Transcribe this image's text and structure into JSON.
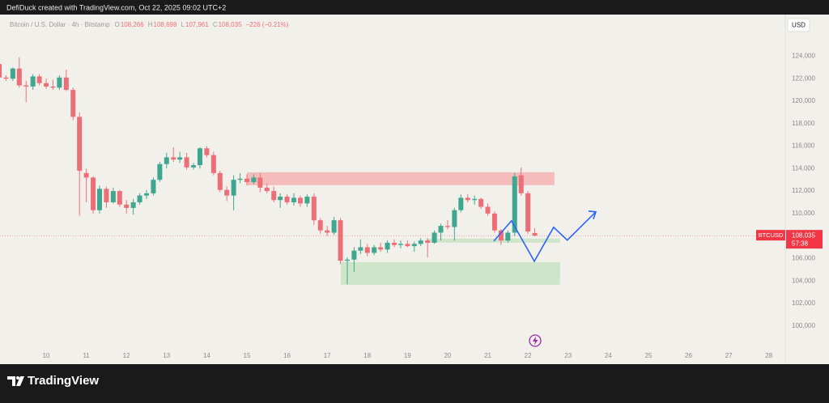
{
  "header": {
    "credit": "DefiDuck created with TradingView.com, Oct 22, 2025 09:02 UTC+2"
  },
  "chart_data": {
    "type": "candlestick",
    "symbol_title": "Bitcoin / U.S. Dollar · 4h · Bitstamp",
    "ohlc_legend": [
      {
        "label": "O",
        "value": "108,266"
      },
      {
        "label": "H",
        "value": "108,698"
      },
      {
        "label": "L",
        "value": "107,961"
      },
      {
        "label": "C",
        "value": "108,035"
      }
    ],
    "change": "−226 (−0.21%)",
    "currency": "USD",
    "up_color": "#3fa690",
    "down_color": "#ec6f78",
    "x": [
      8.83,
      9,
      9.17,
      9.33,
      9.5,
      9.67,
      9.83,
      10,
      10.17,
      10.33,
      10.5,
      10.67,
      10.83,
      11,
      11.17,
      11.33,
      11.5,
      11.67,
      11.83,
      12,
      12.17,
      12.33,
      12.5,
      12.67,
      12.83,
      13,
      13.17,
      13.33,
      13.5,
      13.67,
      13.83,
      14,
      14.17,
      14.33,
      14.5,
      14.67,
      14.83,
      15,
      15.17,
      15.33,
      15.5,
      15.67,
      15.83,
      16,
      16.17,
      16.33,
      16.5,
      16.67,
      16.83,
      17,
      17.17,
      17.33,
      17.5,
      17.67,
      17.83,
      18,
      18.17,
      18.33,
      18.5,
      18.67,
      18.83,
      19,
      19.17,
      19.33,
      19.5,
      19.67,
      19.83,
      20,
      20.17,
      20.33,
      20.5,
      20.67,
      20.83,
      21,
      21.17,
      21.33,
      21.5,
      21.67,
      21.83,
      22,
      22.17
    ],
    "open": [
      123300,
      122100,
      122000,
      122900,
      121400,
      121300,
      122200,
      121600,
      121300,
      121200,
      122100,
      121000,
      118600,
      113600,
      113200,
      110300,
      112200,
      111000,
      112000,
      110800,
      110500,
      111000,
      111600,
      111800,
      113000,
      114400,
      115000,
      114800,
      115000,
      114100,
      114300,
      115800,
      115200,
      113600,
      112100,
      111600,
      113000,
      113100,
      112800,
      113200,
      112300,
      112000,
      111200,
      111500,
      111000,
      111400,
      110900,
      111500,
      109400,
      108500,
      108300,
      109400,
      105800,
      105900,
      106700,
      107000,
      106500,
      107000,
      106800,
      107400,
      107200,
      107300,
      107100,
      107300,
      107600,
      107400,
      108300,
      108900,
      108800,
      110300,
      111400,
      111200,
      111300,
      110600,
      110000,
      108500,
      107600,
      108300,
      113400,
      111800,
      108266
    ],
    "high": [
      123500,
      122300,
      123000,
      123900,
      121800,
      122400,
      122400,
      122000,
      121900,
      122300,
      122800,
      121200,
      119000,
      114000,
      113300,
      112500,
      112400,
      112300,
      112100,
      111200,
      111300,
      111800,
      112100,
      113200,
      114600,
      115400,
      115900,
      115500,
      115400,
      114500,
      115900,
      116000,
      115500,
      113800,
      112400,
      113400,
      113600,
      113500,
      113500,
      113600,
      112700,
      112400,
      111800,
      111700,
      111800,
      111600,
      111700,
      111800,
      109600,
      108900,
      109700,
      109600,
      106100,
      107000,
      107700,
      107300,
      107200,
      107400,
      107600,
      107700,
      107600,
      107600,
      107500,
      107800,
      107800,
      108500,
      109100,
      109400,
      110500,
      111700,
      111700,
      111600,
      111400,
      110900,
      110200,
      108600,
      108500,
      113600,
      114100,
      112000,
      108698
    ],
    "low": [
      121900,
      121800,
      121800,
      121200,
      119900,
      121000,
      121400,
      121100,
      121000,
      121000,
      120900,
      118300,
      109800,
      111000,
      110000,
      110000,
      110500,
      110900,
      110600,
      110000,
      109900,
      110800,
      111300,
      111600,
      112800,
      114000,
      114600,
      114500,
      113900,
      113900,
      114000,
      115000,
      113400,
      111900,
      111100,
      110300,
      112700,
      112500,
      112600,
      111900,
      111800,
      111000,
      110500,
      110800,
      110700,
      110600,
      110600,
      109000,
      108200,
      108000,
      108100,
      105500,
      103700,
      104800,
      106400,
      106200,
      106300,
      106600,
      106500,
      107000,
      106900,
      107000,
      106600,
      107100,
      106100,
      107300,
      107600,
      108600,
      107600,
      110100,
      111000,
      110800,
      110400,
      109800,
      108300,
      107200,
      107400,
      108000,
      111600,
      108200,
      107961
    ],
    "close": [
      122100,
      122000,
      122900,
      121400,
      121300,
      122200,
      121600,
      121300,
      121200,
      122100,
      121000,
      118600,
      113800,
      113200,
      110300,
      112200,
      111000,
      112000,
      110800,
      110500,
      111000,
      111600,
      111800,
      113000,
      114400,
      115000,
      114800,
      115000,
      114100,
      114300,
      115800,
      115200,
      113600,
      112100,
      111600,
      113000,
      113100,
      112800,
      113200,
      112300,
      112000,
      111200,
      111500,
      111000,
      111400,
      110900,
      111500,
      109400,
      108500,
      108300,
      109400,
      105800,
      105900,
      106700,
      107000,
      106500,
      107000,
      106800,
      107400,
      107200,
      107300,
      107100,
      107300,
      107600,
      107400,
      108300,
      108900,
      108800,
      110300,
      111400,
      111200,
      111300,
      110600,
      110000,
      108500,
      107600,
      108300,
      113300,
      111800,
      108400,
      108035
    ],
    "xlim": [
      8.85,
      28.41
    ],
    "xticks": [
      10,
      11,
      12,
      13,
      14,
      15,
      16,
      17,
      18,
      19,
      20,
      21,
      22,
      23,
      24,
      25,
      26,
      27,
      28
    ],
    "ylim": [
      96600,
      127700
    ],
    "yticks": [
      {
        "value": 100000,
        "label": "100,000"
      },
      {
        "value": 102000,
        "label": "102,000"
      },
      {
        "value": 104000,
        "label": "104,000"
      },
      {
        "value": 106000,
        "label": "106,000"
      },
      {
        "value": 108000,
        "label": "108,000"
      },
      {
        "value": 110000,
        "label": "110,000"
      },
      {
        "value": 112000,
        "label": "112,000"
      },
      {
        "value": 114000,
        "label": "114,000"
      },
      {
        "value": 116000,
        "label": "116,000"
      },
      {
        "value": 118000,
        "label": "118,000"
      },
      {
        "value": 120000,
        "label": "120,000"
      },
      {
        "value": 122000,
        "label": "122,000"
      },
      {
        "value": 124000,
        "label": "124,000"
      }
    ],
    "grid": false,
    "last_price": {
      "symbol": "BTCUSD",
      "value": 108035,
      "label": "108,035",
      "countdown": "57:38",
      "color": "#f23645"
    },
    "zones": [
      {
        "color": "#f4b4b4",
        "x": [
          15.0,
          22.66
        ],
        "y": [
          112520,
          113670
        ]
      },
      {
        "color": "#c8e3c4",
        "x": [
          19.47,
          22.8
        ],
        "y": [
          107410,
          107770
        ]
      },
      {
        "color": "#c8e3c4",
        "x": [
          17.34,
          22.8
        ],
        "y": [
          103670,
          105680
        ]
      }
    ],
    "projection": {
      "color": "#2962ff",
      "x": [
        21.15,
        21.59,
        22.16,
        22.64,
        22.98,
        23.69
      ],
      "y": [
        107550,
        109350,
        105750,
        108780,
        107630,
        110150
      ]
    }
  },
  "footer": {
    "brand": "TradingView"
  }
}
